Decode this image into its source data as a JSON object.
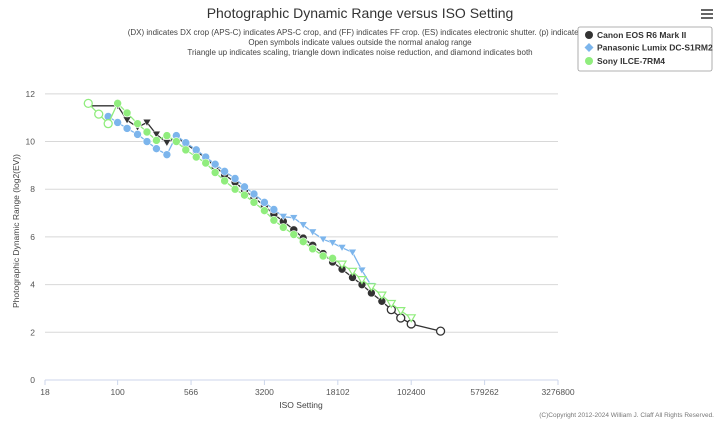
{
  "menu_icon": "hamburger-menu-icon",
  "chart_data": {
    "type": "line",
    "title": "Photographic Dynamic Range versus ISO Setting",
    "subtitle_lines": [
      "(DX) indicates DX crop (APS-C) indicates APS-C crop, and (FF) indicates FF crop. (ES) indicates electronic shutter. (p) indicated pr",
      "Open symbols indicate values outside the normal analog range",
      "Triangle up indicates scaling, triangle down indicates noise reduction, and diamond indicates both"
    ],
    "xlabel": "ISO Setting",
    "ylabel": "Photographic Dynamic Range (log2(EV))",
    "x_scale": "log",
    "x_ticks": [
      18,
      100,
      566,
      3200,
      18102,
      102400,
      579262,
      3276800
    ],
    "x_range": [
      18,
      3276800
    ],
    "y_ticks": [
      0,
      2,
      4,
      6,
      8,
      10,
      12
    ],
    "y_range": [
      0,
      13
    ],
    "grid": "horizontal",
    "legend_position": "top-right",
    "credits": "(C)Copyright 2012-2024 William J. Claff All Rights Reserved.",
    "series": [
      {
        "name": "Canon EOS R6 Mark II",
        "color": "#333333",
        "marker": "circle",
        "points": [
          {
            "x": 50,
            "y": 11.5,
            "m": "none"
          },
          {
            "x": 100,
            "y": 11.5,
            "m": "tri-down"
          },
          {
            "x": 125,
            "y": 10.9,
            "m": "tri-down"
          },
          {
            "x": 160,
            "y": 10.6,
            "m": "tri-down"
          },
          {
            "x": 200,
            "y": 10.8,
            "m": "tri-down"
          },
          {
            "x": 250,
            "y": 10.3,
            "m": "tri-down"
          },
          {
            "x": 320,
            "y": 9.95,
            "m": "tri-down"
          },
          {
            "x": 400,
            "y": 10.2,
            "m": "circle"
          },
          {
            "x": 500,
            "y": 9.9,
            "m": "circle"
          },
          {
            "x": 640,
            "y": 9.6,
            "m": "circle"
          },
          {
            "x": 800,
            "y": 9.3,
            "m": "circle"
          },
          {
            "x": 1000,
            "y": 8.95,
            "m": "circle"
          },
          {
            "x": 1250,
            "y": 8.6,
            "m": "circle"
          },
          {
            "x": 1600,
            "y": 8.3,
            "m": "circle"
          },
          {
            "x": 2000,
            "y": 7.95,
            "m": "circle"
          },
          {
            "x": 2500,
            "y": 7.65,
            "m": "circle"
          },
          {
            "x": 3200,
            "y": 7.3,
            "m": "circle"
          },
          {
            "x": 4000,
            "y": 6.95,
            "m": "circle"
          },
          {
            "x": 5000,
            "y": 6.65,
            "m": "circle"
          },
          {
            "x": 6400,
            "y": 6.3,
            "m": "circle"
          },
          {
            "x": 8000,
            "y": 5.95,
            "m": "circle"
          },
          {
            "x": 10000,
            "y": 5.65,
            "m": "circle"
          },
          {
            "x": 12800,
            "y": 5.3,
            "m": "circle"
          },
          {
            "x": 16000,
            "y": 4.95,
            "m": "circle"
          },
          {
            "x": 20000,
            "y": 4.65,
            "m": "circle"
          },
          {
            "x": 25600,
            "y": 4.3,
            "m": "circle"
          },
          {
            "x": 32000,
            "y": 4.0,
            "m": "circle"
          },
          {
            "x": 40000,
            "y": 3.65,
            "m": "circle"
          },
          {
            "x": 51200,
            "y": 3.3,
            "m": "circle"
          },
          {
            "x": 64000,
            "y": 2.95,
            "m": "open-circle"
          },
          {
            "x": 80000,
            "y": 2.6,
            "m": "open-circle"
          },
          {
            "x": 102400,
            "y": 2.35,
            "m": "open-circle"
          },
          {
            "x": 204800,
            "y": 2.05,
            "m": "open-circle"
          }
        ]
      },
      {
        "name": "Panasonic Lumix DC-S1RM2",
        "color": "#7cb5ec",
        "marker": "diamond",
        "points": [
          {
            "x": 80,
            "y": 11.05,
            "m": "circle"
          },
          {
            "x": 100,
            "y": 10.8,
            "m": "circle"
          },
          {
            "x": 125,
            "y": 10.55,
            "m": "circle"
          },
          {
            "x": 160,
            "y": 10.3,
            "m": "circle"
          },
          {
            "x": 200,
            "y": 10.0,
            "m": "circle"
          },
          {
            "x": 250,
            "y": 9.7,
            "m": "circle"
          },
          {
            "x": 320,
            "y": 9.45,
            "m": "circle"
          },
          {
            "x": 400,
            "y": 10.25,
            "m": "circle"
          },
          {
            "x": 500,
            "y": 9.95,
            "m": "circle"
          },
          {
            "x": 640,
            "y": 9.65,
            "m": "circle"
          },
          {
            "x": 800,
            "y": 9.35,
            "m": "circle"
          },
          {
            "x": 1000,
            "y": 9.05,
            "m": "circle"
          },
          {
            "x": 1250,
            "y": 8.75,
            "m": "circle"
          },
          {
            "x": 1600,
            "y": 8.45,
            "m": "circle"
          },
          {
            "x": 2000,
            "y": 8.1,
            "m": "circle"
          },
          {
            "x": 2500,
            "y": 7.8,
            "m": "circle"
          },
          {
            "x": 3200,
            "y": 7.45,
            "m": "circle"
          },
          {
            "x": 4000,
            "y": 7.15,
            "m": "circle"
          },
          {
            "x": 5000,
            "y": 6.85,
            "m": "tri-down"
          },
          {
            "x": 6400,
            "y": 6.8,
            "m": "tri-down"
          },
          {
            "x": 8000,
            "y": 6.5,
            "m": "tri-down"
          },
          {
            "x": 10000,
            "y": 6.2,
            "m": "tri-down"
          },
          {
            "x": 12800,
            "y": 5.9,
            "m": "tri-down"
          },
          {
            "x": 16000,
            "y": 5.75,
            "m": "tri-down"
          },
          {
            "x": 20000,
            "y": 5.55,
            "m": "tri-down"
          },
          {
            "x": 25600,
            "y": 5.35,
            "m": "tri-down"
          },
          {
            "x": 32000,
            "y": 4.6,
            "m": "tri-down"
          },
          {
            "x": 40000,
            "y": 3.95,
            "m": "tri-down"
          }
        ]
      },
      {
        "name": "Sony ILCE-7RM4",
        "color": "#90ed7d",
        "marker": "circle",
        "points": [
          {
            "x": 50,
            "y": 11.6,
            "m": "open-circle"
          },
          {
            "x": 64,
            "y": 11.15,
            "m": "open-circle"
          },
          {
            "x": 80,
            "y": 10.75,
            "m": "open-circle"
          },
          {
            "x": 100,
            "y": 11.6,
            "m": "circle"
          },
          {
            "x": 125,
            "y": 11.2,
            "m": "circle"
          },
          {
            "x": 160,
            "y": 10.75,
            "m": "circle"
          },
          {
            "x": 200,
            "y": 10.4,
            "m": "circle"
          },
          {
            "x": 250,
            "y": 10.05,
            "m": "circle"
          },
          {
            "x": 320,
            "y": 10.25,
            "m": "circle"
          },
          {
            "x": 400,
            "y": 10.0,
            "m": "circle"
          },
          {
            "x": 500,
            "y": 9.65,
            "m": "circle"
          },
          {
            "x": 640,
            "y": 9.35,
            "m": "circle"
          },
          {
            "x": 800,
            "y": 9.1,
            "m": "circle"
          },
          {
            "x": 1000,
            "y": 8.7,
            "m": "circle"
          },
          {
            "x": 1250,
            "y": 8.35,
            "m": "circle"
          },
          {
            "x": 1600,
            "y": 8.0,
            "m": "circle"
          },
          {
            "x": 2000,
            "y": 7.75,
            "m": "circle"
          },
          {
            "x": 2500,
            "y": 7.45,
            "m": "circle"
          },
          {
            "x": 3200,
            "y": 7.1,
            "m": "circle"
          },
          {
            "x": 4000,
            "y": 6.7,
            "m": "circle"
          },
          {
            "x": 5000,
            "y": 6.4,
            "m": "circle"
          },
          {
            "x": 6400,
            "y": 6.1,
            "m": "circle"
          },
          {
            "x": 8000,
            "y": 5.8,
            "m": "circle"
          },
          {
            "x": 10000,
            "y": 5.5,
            "m": "circle"
          },
          {
            "x": 12800,
            "y": 5.2,
            "m": "circle"
          },
          {
            "x": 16000,
            "y": 5.1,
            "m": "circle"
          },
          {
            "x": 20000,
            "y": 4.85,
            "m": "open-tri-down"
          },
          {
            "x": 25600,
            "y": 4.55,
            "m": "open-tri-down"
          },
          {
            "x": 32000,
            "y": 4.2,
            "m": "open-tri-down"
          },
          {
            "x": 40000,
            "y": 3.9,
            "m": "open-tri-down"
          },
          {
            "x": 51200,
            "y": 3.55,
            "m": "open-tri-down"
          },
          {
            "x": 64000,
            "y": 3.2,
            "m": "open-tri-down"
          },
          {
            "x": 80000,
            "y": 2.9,
            "m": "open-tri-down"
          },
          {
            "x": 102400,
            "y": 2.6,
            "m": "open-tri-down"
          }
        ]
      }
    ]
  }
}
